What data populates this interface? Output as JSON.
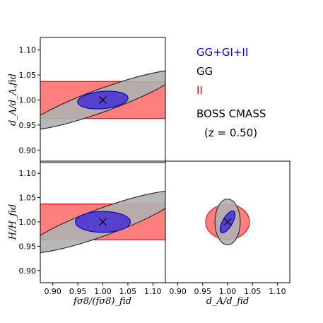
{
  "legend": {
    "entries": [
      {
        "label": "GG+GI+II",
        "color": "#0000ee"
      },
      {
        "label": "GG",
        "color": "#000000"
      },
      {
        "label": "II",
        "color": "#ee0000"
      }
    ],
    "survey": "BOSS CMASS",
    "redshift": "(z = 0.50)"
  },
  "chart_data": [
    {
      "type": "scatter",
      "panel": "top-left",
      "xlabel": "",
      "ylabel": "d_A/d_A,fid",
      "xlim": [
        0.875,
        1.125
      ],
      "ylim": [
        0.875,
        1.125
      ],
      "xticks": [],
      "yticks": [
        "0.90",
        "0.95",
        "1.00",
        "1.05",
        "1.10"
      ],
      "fiducial_marker": {
        "x": 1.0,
        "y": 1.0,
        "symbol": "×"
      },
      "regions": [
        {
          "series": "II",
          "shape": "band",
          "y_range": [
            0.963,
            1.037
          ],
          "fill": "#ff7070",
          "edge": "#e01010"
        },
        {
          "series": "GG",
          "shape": "ellipse",
          "center": [
            1.0,
            1.0
          ],
          "semi_major": 0.16,
          "semi_minor": 0.023,
          "angle_deg": 20,
          "fill": "#b0b0b0",
          "edge": "#222222"
        },
        {
          "series": "GG+GI+II",
          "shape": "ellipse",
          "center": [
            1.0,
            1.0
          ],
          "semi_major": 0.0505,
          "semi_minor": 0.0173,
          "angle_deg": 5,
          "fill": "#4a35d0",
          "edge": "#0000aa"
        }
      ]
    },
    {
      "type": "scatter",
      "panel": "bottom-left",
      "xlabel": "fσ8/(fσ8)_fid",
      "ylabel": "H/H_fid",
      "xlim": [
        0.875,
        1.125
      ],
      "ylim": [
        0.875,
        1.125
      ],
      "xticks": [
        "0.90",
        "0.95",
        "1.00",
        "1.05",
        "1.10"
      ],
      "yticks": [
        "0.90",
        "0.95",
        "1.00",
        "1.05",
        "1.10"
      ],
      "fiducial_marker": {
        "x": 1.0,
        "y": 1.0,
        "symbol": "×"
      },
      "regions": [
        {
          "series": "II",
          "shape": "band",
          "y_range": [
            0.963,
            1.037
          ],
          "fill": "#ff7070",
          "edge": "#e01010"
        },
        {
          "series": "GG",
          "shape": "ellipse",
          "center": [
            1.0,
            1.0
          ],
          "semi_major": 0.165,
          "semi_minor": 0.028,
          "angle_deg": 20,
          "fill": "#b0b0b0",
          "edge": "#222222"
        },
        {
          "series": "GG+GI+II",
          "shape": "ellipse",
          "center": [
            1.0,
            1.0
          ],
          "semi_major": 0.055,
          "semi_minor": 0.0215,
          "angle_deg": 0,
          "fill": "#4a35d0",
          "edge": "#0000aa"
        }
      ]
    },
    {
      "type": "scatter",
      "panel": "bottom-right",
      "xlabel": "d_A/d_fid",
      "ylabel": "",
      "xlim": [
        0.875,
        1.125
      ],
      "ylim": [
        0.875,
        1.125
      ],
      "xticks": [
        "0.90",
        "0.95",
        "1.00",
        "1.05",
        "1.10"
      ],
      "yticks": [],
      "fiducial_marker": {
        "x": 1.0,
        "y": 1.0,
        "symbol": "×"
      },
      "regions": [
        {
          "series": "II",
          "shape": "ellipse",
          "center": [
            1.0,
            1.0
          ],
          "semi_major": 0.044,
          "semi_minor": 0.036,
          "angle_deg": 0,
          "fill": "#ff7070",
          "edge": "#e01010"
        },
        {
          "series": "GG",
          "shape": "ellipse",
          "center": [
            1.0,
            1.0
          ],
          "semi_major": 0.046,
          "semi_minor": 0.026,
          "angle_deg": 90,
          "fill": "#b0b0b0",
          "edge": "#222222"
        },
        {
          "series": "GG+GI+II",
          "shape": "ellipse",
          "center": [
            1.0,
            1.0
          ],
          "semi_major": 0.025,
          "semi_minor": 0.01,
          "angle_deg": 60,
          "fill": "#4a35d0",
          "edge": "#0000aa"
        }
      ]
    }
  ]
}
